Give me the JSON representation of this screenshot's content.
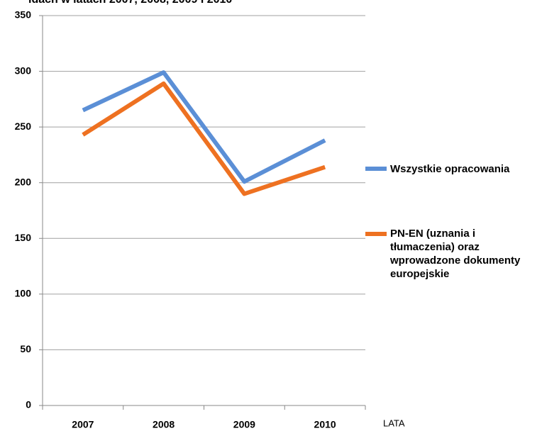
{
  "chart_data": {
    "type": "line",
    "title": "idach w latach 2007, 2008, 2009 i 2010",
    "x_label": "LATA",
    "categories": [
      "2007",
      "2008",
      "2009",
      "2010"
    ],
    "series": [
      {
        "name": "Wszystkie opracowania",
        "color": "#5b8fd6",
        "values": [
          265,
          299,
          201,
          238
        ]
      },
      {
        "name": "PN-EN (uznania i tłumaczenia) oraz wprowadzone dokumenty europejskie",
        "color": "#ee7121",
        "values": [
          243,
          289,
          190,
          214
        ]
      }
    ],
    "ylim": [
      0,
      350
    ],
    "yticks": [
      0,
      50,
      100,
      150,
      200,
      250,
      300,
      350
    ],
    "grid": true
  }
}
